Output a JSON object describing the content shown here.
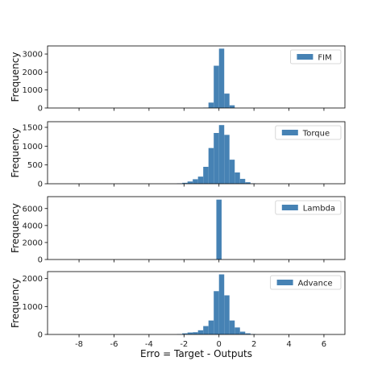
{
  "chart_data": {
    "type": "bar",
    "style": {
      "bar_color": "#4682b4",
      "background": "#ffffff",
      "axes_color": "#000000"
    },
    "xlabel": "Erro = Target - Outputs",
    "xlim": [
      -9.8,
      7.2
    ],
    "x_ticks": [
      -8,
      -6,
      -4,
      -2,
      0,
      2,
      4,
      6
    ],
    "legend_position": "upper right",
    "panels": [
      {
        "name": "FIM",
        "ylabel": "Frequency",
        "ylim": [
          0,
          3450
        ],
        "y_ticks": [
          0,
          1000,
          2000,
          3000
        ],
        "bins": [
          {
            "x0": -0.9,
            "x1": -0.6,
            "value": 20
          },
          {
            "x0": -0.6,
            "x1": -0.3,
            "value": 300
          },
          {
            "x0": -0.3,
            "x1": 0.0,
            "value": 2350
          },
          {
            "x0": 0.0,
            "x1": 0.3,
            "value": 3300
          },
          {
            "x0": 0.3,
            "x1": 0.6,
            "value": 800
          },
          {
            "x0": 0.6,
            "x1": 0.9,
            "value": 150
          }
        ]
      },
      {
        "name": "Torque",
        "ylabel": "Frequency",
        "ylim": [
          0,
          1650
        ],
        "y_ticks": [
          0,
          500,
          1000,
          1500
        ],
        "bins": [
          {
            "x0": -2.4,
            "x1": -2.1,
            "value": 10
          },
          {
            "x0": -2.1,
            "x1": -1.8,
            "value": 25
          },
          {
            "x0": -1.8,
            "x1": -1.5,
            "value": 60
          },
          {
            "x0": -1.5,
            "x1": -1.2,
            "value": 120
          },
          {
            "x0": -1.2,
            "x1": -0.9,
            "value": 190
          },
          {
            "x0": -0.9,
            "x1": -0.6,
            "value": 450
          },
          {
            "x0": -0.6,
            "x1": -0.3,
            "value": 950
          },
          {
            "x0": -0.3,
            "x1": 0.0,
            "value": 1350
          },
          {
            "x0": 0.0,
            "x1": 0.3,
            "value": 1560
          },
          {
            "x0": 0.3,
            "x1": 0.6,
            "value": 1300
          },
          {
            "x0": 0.6,
            "x1": 0.9,
            "value": 640
          },
          {
            "x0": 0.9,
            "x1": 1.2,
            "value": 300
          },
          {
            "x0": 1.2,
            "x1": 1.5,
            "value": 130
          },
          {
            "x0": 1.5,
            "x1": 1.8,
            "value": 40
          },
          {
            "x0": 1.8,
            "x1": 2.1,
            "value": 10
          }
        ]
      },
      {
        "name": "Lambda",
        "ylabel": "Frequency",
        "ylim": [
          0,
          7400
        ],
        "y_ticks": [
          0,
          2000,
          4000,
          6000
        ],
        "bins": [
          {
            "x0": -0.15,
            "x1": 0.15,
            "value": 7050
          }
        ]
      },
      {
        "name": "Advance",
        "ylabel": "Frequency",
        "ylim": [
          0,
          2250
        ],
        "y_ticks": [
          0,
          1000,
          2000
        ],
        "bins": [
          {
            "x0": -2.4,
            "x1": -2.1,
            "value": 10
          },
          {
            "x0": -2.1,
            "x1": -1.8,
            "value": 40
          },
          {
            "x0": -1.8,
            "x1": -1.5,
            "value": 70
          },
          {
            "x0": -1.5,
            "x1": -1.2,
            "value": 80
          },
          {
            "x0": -1.2,
            "x1": -0.9,
            "value": 150
          },
          {
            "x0": -0.9,
            "x1": -0.6,
            "value": 300
          },
          {
            "x0": -0.6,
            "x1": -0.3,
            "value": 500
          },
          {
            "x0": -0.3,
            "x1": 0.0,
            "value": 1550
          },
          {
            "x0": 0.0,
            "x1": 0.3,
            "value": 2150
          },
          {
            "x0": 0.3,
            "x1": 0.6,
            "value": 1400
          },
          {
            "x0": 0.6,
            "x1": 0.9,
            "value": 500
          },
          {
            "x0": 0.9,
            "x1": 1.2,
            "value": 250
          },
          {
            "x0": 1.2,
            "x1": 1.5,
            "value": 100
          },
          {
            "x0": 1.5,
            "x1": 1.8,
            "value": 40
          },
          {
            "x0": 1.8,
            "x1": 2.1,
            "value": 15
          }
        ]
      }
    ]
  }
}
